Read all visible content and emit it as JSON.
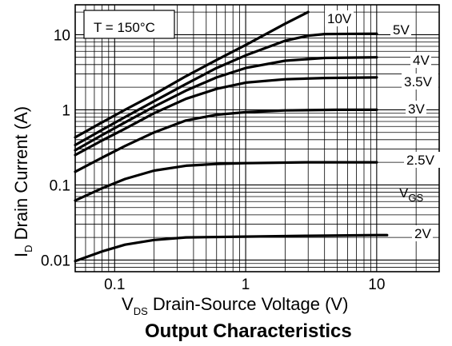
{
  "chart_data": {
    "type": "line",
    "title": "Output Characteristics",
    "xscale": "log",
    "yscale": "log",
    "xlim": [
      0.05,
      30
    ],
    "ylim": [
      0.007,
      25
    ],
    "x_ticks": [
      {
        "value": 0.1,
        "label": "0.1"
      },
      {
        "value": 1,
        "label": "1"
      },
      {
        "value": 10,
        "label": "10"
      }
    ],
    "y_ticks": [
      {
        "value": 0.01,
        "label": "0.01"
      },
      {
        "value": 0.1,
        "label": "0.1"
      },
      {
        "value": 1,
        "label": "1"
      },
      {
        "value": 10,
        "label": "10"
      }
    ],
    "xlabel": {
      "main": "V",
      "sub": "DS",
      "rest": " Drain-Source Voltage (V)"
    },
    "ylabel": {
      "main": "I",
      "sub": "D",
      "rest": " Drain Current (A)"
    },
    "annotation": "T = 150°C",
    "legend_title": {
      "main": "V",
      "sub": "GS"
    },
    "grid": true,
    "series": [
      {
        "name": "2V",
        "x": [
          0.05,
          0.08,
          0.12,
          0.2,
          0.35,
          1,
          3,
          10,
          12
        ],
        "y": [
          0.0097,
          0.013,
          0.016,
          0.0185,
          0.02,
          0.0205,
          0.021,
          0.0215,
          0.0215
        ]
      },
      {
        "name": "2.5V",
        "x": [
          0.05,
          0.08,
          0.12,
          0.2,
          0.35,
          0.6,
          1,
          3,
          10
        ],
        "y": [
          0.062,
          0.09,
          0.12,
          0.155,
          0.18,
          0.19,
          0.195,
          0.2,
          0.2
        ]
      },
      {
        "name": "3V",
        "x": [
          0.05,
          0.08,
          0.12,
          0.2,
          0.35,
          0.6,
          1,
          2,
          5,
          10
        ],
        "y": [
          0.15,
          0.23,
          0.33,
          0.5,
          0.72,
          0.86,
          0.93,
          0.98,
          1.0,
          1.0
        ]
      },
      {
        "name": "3.5V",
        "x": [
          0.05,
          0.08,
          0.12,
          0.2,
          0.35,
          0.6,
          1,
          2,
          4,
          10
        ],
        "y": [
          0.25,
          0.39,
          0.56,
          0.9,
          1.4,
          1.9,
          2.3,
          2.55,
          2.65,
          2.7
        ]
      },
      {
        "name": "4V",
        "x": [
          0.05,
          0.08,
          0.12,
          0.2,
          0.35,
          0.6,
          1,
          2,
          4,
          10
        ],
        "y": [
          0.29,
          0.46,
          0.68,
          1.1,
          1.8,
          2.7,
          3.6,
          4.5,
          4.9,
          5.0
        ]
      },
      {
        "name": "5V",
        "x": [
          0.05,
          0.08,
          0.12,
          0.2,
          0.35,
          0.6,
          1,
          2,
          3,
          4,
          10
        ],
        "y": [
          0.34,
          0.54,
          0.8,
          1.3,
          2.2,
          3.6,
          5.3,
          8.3,
          9.7,
          10.2,
          10.3
        ]
      },
      {
        "name": "10V",
        "x": [
          0.05,
          0.08,
          0.12,
          0.2,
          0.35,
          0.6,
          1,
          2,
          3
        ],
        "y": [
          0.43,
          0.68,
          1.0,
          1.6,
          2.8,
          4.6,
          7.3,
          14,
          20
        ]
      }
    ]
  }
}
